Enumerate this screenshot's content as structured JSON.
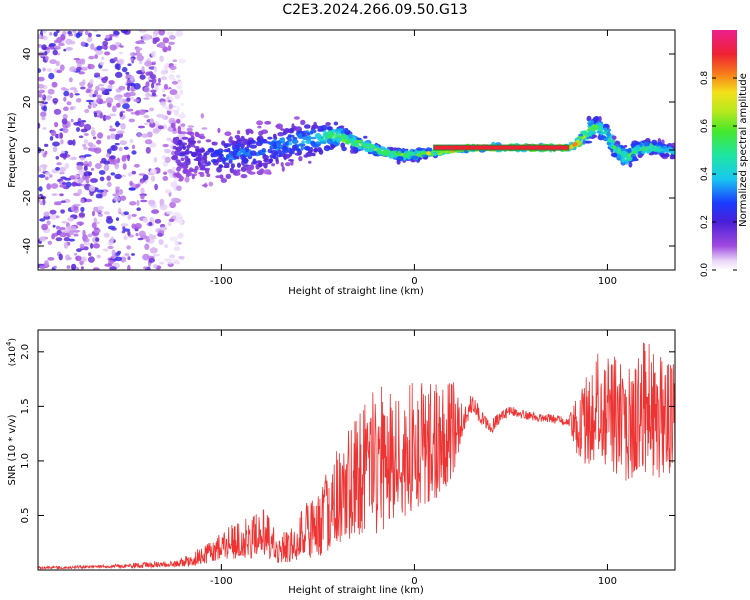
{
  "title": "C2E3.2024.266.09.50.G13",
  "colors": {
    "snr_line": "#ee3333",
    "axis": "#000000",
    "background": "#ffffff"
  },
  "chart_data": [
    {
      "type": "heatmap",
      "title": "C2E3.2024.266.09.50.G13",
      "xlabel": "Height of straight line (km)",
      "ylabel": "Frequency (Hz)",
      "xlim": [
        -195,
        135
      ],
      "ylim": [
        -50,
        50
      ],
      "xticks": [
        -100,
        0,
        100
      ],
      "xtick_labels": [
        "-100",
        "0",
        "100"
      ],
      "yticks": [
        -40,
        -20,
        0,
        20,
        40
      ],
      "ytick_labels": [
        "-40",
        "-20",
        "0",
        "20",
        "40"
      ],
      "grid": false,
      "colorbar": {
        "label": "Normalized spectral amplitude",
        "range": [
          0,
          1
        ],
        "ticks": [
          0.0,
          0.2,
          0.4,
          0.6,
          0.8
        ],
        "tick_labels": [
          "0.0",
          "0.2",
          "0.4",
          "0.6",
          "0.8"
        ],
        "colormap": "rainbow (white-violet-blue-cyan-green-yellow-red-magenta)"
      },
      "ridge": {
        "x": [
          -125,
          -110,
          -95,
          -80,
          -65,
          -50,
          -40,
          -30,
          -20,
          -10,
          0,
          10,
          20,
          30,
          40,
          50,
          60,
          70,
          80,
          85,
          90,
          95,
          100,
          105,
          110,
          115,
          120,
          125,
          130,
          135
        ],
        "freq": [
          0,
          -3,
          -2,
          0,
          3,
          5,
          6,
          3,
          0,
          -2,
          -2,
          -1,
          0,
          1,
          1,
          1,
          1,
          1,
          1,
          3,
          8,
          10,
          6,
          -1,
          -3,
          0,
          1,
          1,
          0,
          -1
        ],
        "amplitude": [
          0.2,
          0.2,
          0.3,
          0.3,
          0.35,
          0.4,
          0.6,
          0.6,
          0.6,
          0.6,
          0.6,
          0.7,
          0.8,
          0.9,
          0.9,
          0.9,
          0.9,
          0.9,
          0.9,
          0.7,
          0.6,
          0.5,
          0.5,
          0.55,
          0.55,
          0.5,
          0.5,
          0.5,
          0.4,
          0.4
        ],
        "spread": [
          14,
          12,
          10,
          9,
          8,
          7,
          4,
          3,
          2,
          2,
          2,
          1,
          1,
          1,
          1,
          1,
          1,
          1,
          1,
          2,
          4,
          4,
          4,
          4,
          4,
          4,
          3,
          3,
          3,
          3
        ]
      },
      "noise_region": {
        "x_range": [
          -195,
          -120
        ],
        "freq_range": [
          -50,
          50
        ],
        "amplitude": 0.15
      }
    },
    {
      "type": "line",
      "xlabel": "Height of straight line (km)",
      "ylabel": "SNR (10 * v/v)",
      "y_scale_label": "(x10",
      "y_scale_exponent": "4",
      "xlim": [
        -195,
        135
      ],
      "ylim": [
        0,
        2.2
      ],
      "xticks": [
        -100,
        0,
        100
      ],
      "xtick_labels": [
        "-100",
        "0",
        "100"
      ],
      "yticks": [
        0.5,
        1.0,
        1.5,
        2.0
      ],
      "ytick_labels": [
        "0.5",
        "1.0",
        "1.5",
        "2.0"
      ],
      "grid": false,
      "series": [
        {
          "color": "#ee3333",
          "x": [
            -195,
            -180,
            -160,
            -140,
            -125,
            -115,
            -105,
            -95,
            -85,
            -78,
            -70,
            -60,
            -50,
            -40,
            -30,
            -20,
            -10,
            0,
            10,
            15,
            20,
            25,
            30,
            35,
            40,
            45,
            50,
            60,
            70,
            80,
            85,
            90,
            95,
            100,
            105,
            110,
            115,
            120,
            125,
            130,
            135
          ],
          "y": [
            0.02,
            0.02,
            0.03,
            0.04,
            0.05,
            0.08,
            0.15,
            0.22,
            0.25,
            0.3,
            0.15,
            0.25,
            0.35,
            0.55,
            0.7,
            0.8,
            0.9,
            1.0,
            1.05,
            1.1,
            1.2,
            1.35,
            1.5,
            1.38,
            1.3,
            1.4,
            1.45,
            1.4,
            1.38,
            1.35,
            1.25,
            1.3,
            1.35,
            1.35,
            1.3,
            1.25,
            1.3,
            1.35,
            1.25,
            1.3,
            1.25
          ],
          "noise": [
            0.01,
            0.01,
            0.01,
            0.02,
            0.02,
            0.05,
            0.08,
            0.12,
            0.15,
            0.18,
            0.1,
            0.18,
            0.25,
            0.35,
            0.45,
            0.55,
            0.5,
            0.45,
            0.45,
            0.4,
            0.35,
            0.1,
            0.08,
            0.05,
            0.05,
            0.04,
            0.04,
            0.03,
            0.03,
            0.03,
            0.25,
            0.35,
            0.4,
            0.45,
            0.45,
            0.45,
            0.45,
            0.5,
            0.45,
            0.45,
            0.45
          ]
        }
      ]
    }
  ]
}
